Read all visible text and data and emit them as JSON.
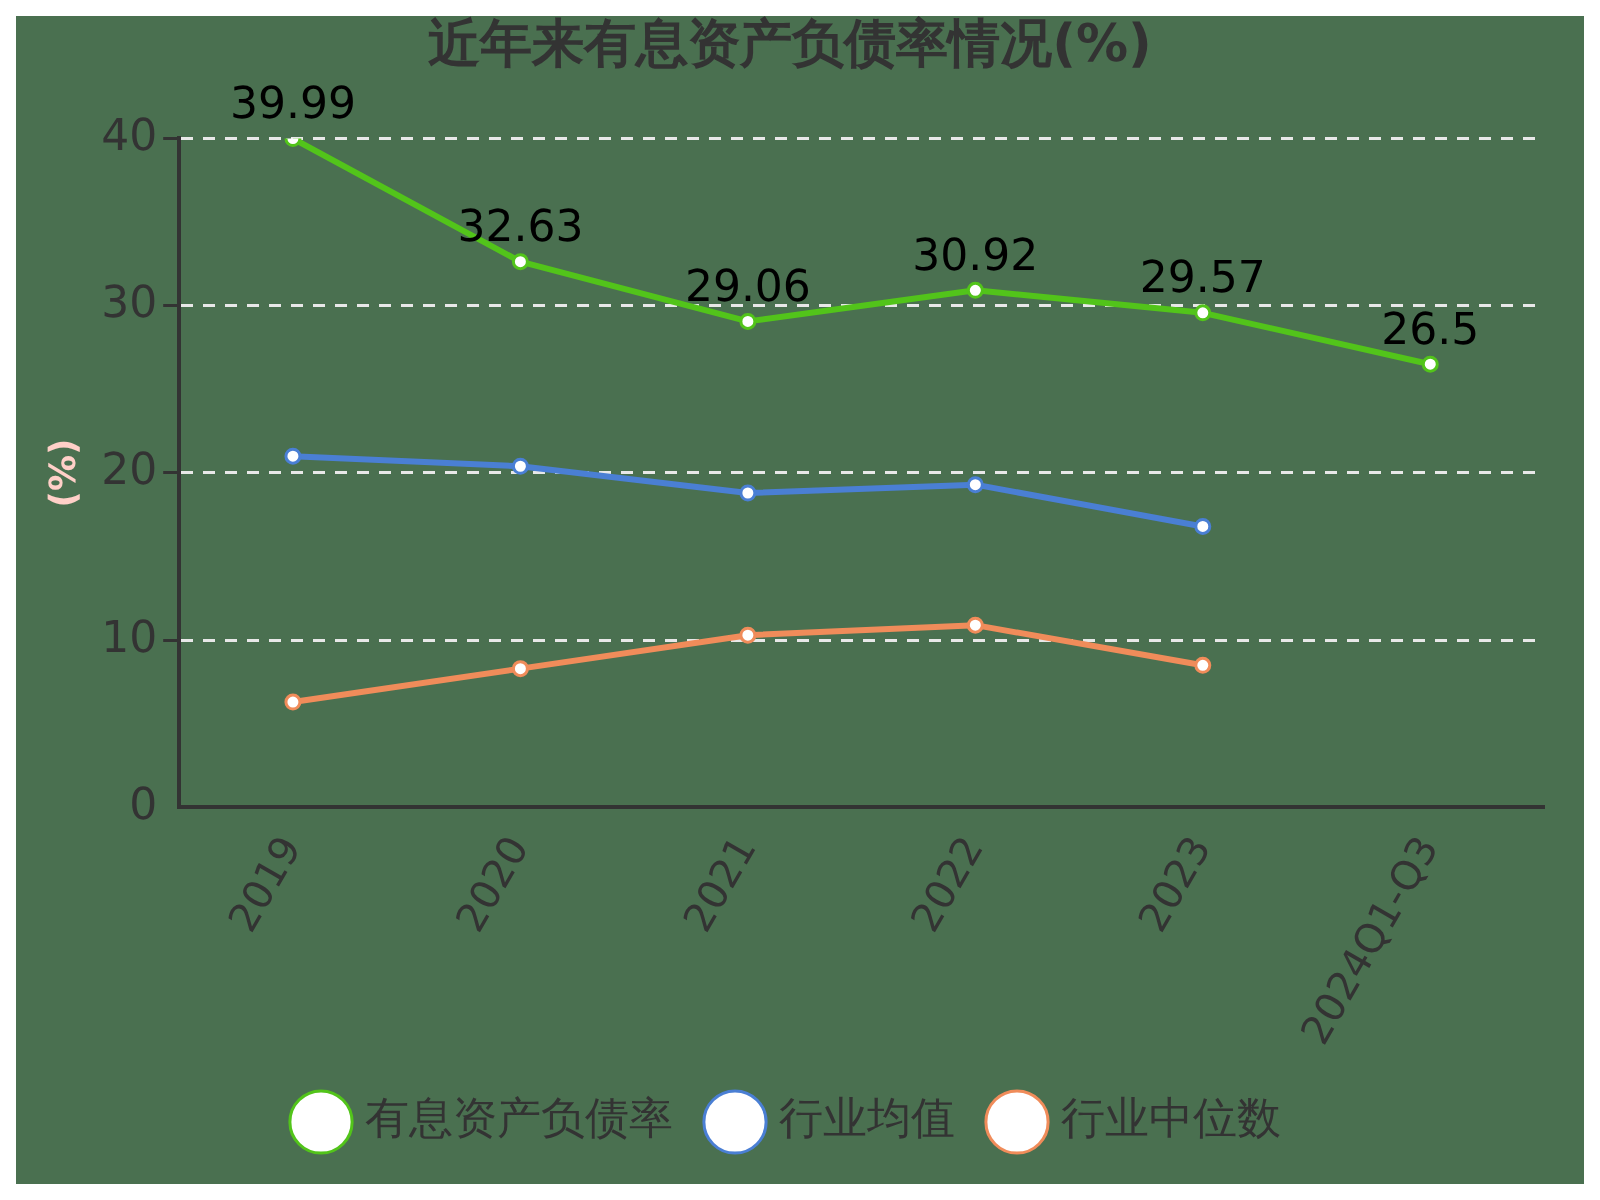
{
  "chart_data": {
    "type": "line",
    "title": "近年来有息资产负债率情况(%)",
    "ylabel": "(%)",
    "categories": [
      "2019",
      "2020",
      "2021",
      "2022",
      "2023",
      "2024Q1-Q3"
    ],
    "series": [
      {
        "name": "有息资产负债率",
        "color": "#52c41a",
        "values": [
          39.99,
          32.63,
          29.06,
          30.92,
          29.57,
          26.5
        ],
        "value_labels": [
          "39.99",
          "32.63",
          "29.06",
          "30.92",
          "29.57",
          "26.5"
        ]
      },
      {
        "name": "行业均值",
        "color": "#4a7fd4",
        "values": [
          21.0,
          20.4,
          18.8,
          19.3,
          16.8,
          null
        ]
      },
      {
        "name": "行业中位数",
        "color": "#f08c5a",
        "values": [
          6.3,
          8.3,
          10.3,
          10.9,
          8.5,
          null
        ]
      }
    ],
    "ylim": [
      0,
      40
    ],
    "yticks": [
      0,
      10,
      20,
      30,
      40
    ],
    "grid": "y",
    "legend": "bottom",
    "marker": "circle",
    "line_style": "solid"
  }
}
